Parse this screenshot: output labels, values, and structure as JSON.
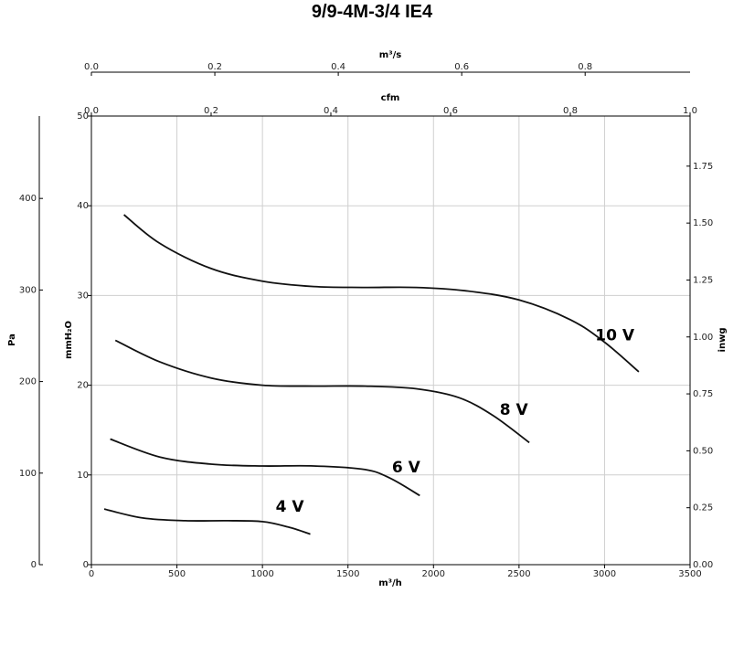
{
  "chart_data": {
    "type": "line",
    "title": "9/9-4M-3/4 IE4",
    "axes": {
      "bottom": {
        "label": "m³/h",
        "range": [
          0,
          3500
        ],
        "ticks": [
          "0",
          "500",
          "1000",
          "1500",
          "2000",
          "2500",
          "3000",
          "3500"
        ]
      },
      "top_inner": {
        "label": "cfm",
        "range": [
          0,
          1.0
        ],
        "ticks": [
          "0.0",
          "0.2",
          "0.4",
          "0.6",
          "0.8",
          "1.0"
        ]
      },
      "top_outer": {
        "label": "m³/s",
        "range": [
          0,
          0.97
        ],
        "ticks": [
          "0.0",
          "0.2",
          "0.4",
          "0.6",
          "0.8"
        ]
      },
      "left_inner": {
        "label": "mmH₂O",
        "range": [
          0,
          50
        ],
        "ticks": [
          "0",
          "10",
          "20",
          "30",
          "40",
          "50"
        ]
      },
      "left_outer": {
        "label": "Pa",
        "range": [
          0,
          490
        ],
        "ticks": [
          "0",
          "100",
          "200",
          "300",
          "400"
        ]
      },
      "right": {
        "label": "inwg",
        "range": [
          0,
          1.97
        ],
        "ticks": [
          "0.00",
          "0.25",
          "0.50",
          "0.75",
          "1.00",
          "1.25",
          "1.50",
          "1.75"
        ]
      }
    },
    "grid": true,
    "series": [
      {
        "name": "10 V",
        "label_at": [
          3060,
          25.0
        ],
        "x": [
          190,
          400,
          700,
          1000,
          1300,
          1600,
          1900,
          2200,
          2500,
          2800,
          3000,
          3200
        ],
        "y": [
          39,
          35.8,
          33.0,
          31.6,
          31.0,
          30.9,
          30.9,
          30.5,
          29.5,
          27.3,
          24.8,
          21.5
        ]
      },
      {
        "name": "8 V",
        "label_at": [
          2470,
          16.7
        ],
        "x": [
          140,
          400,
          700,
          1000,
          1300,
          1600,
          1900,
          2150,
          2350,
          2560
        ],
        "y": [
          25.0,
          22.6,
          20.8,
          20.0,
          19.9,
          19.9,
          19.6,
          18.6,
          16.6,
          13.6
        ]
      },
      {
        "name": "6 V",
        "label_at": [
          1840,
          10.3
        ],
        "x": [
          110,
          400,
          700,
          1000,
          1300,
          1600,
          1750,
          1920
        ],
        "y": [
          14.0,
          12.0,
          11.2,
          11.0,
          11.0,
          10.6,
          9.6,
          7.7
        ]
      },
      {
        "name": "4 V",
        "label_at": [
          1160,
          5.9
        ],
        "x": [
          75,
          300,
          550,
          800,
          1000,
          1150,
          1280
        ],
        "y": [
          6.2,
          5.2,
          4.9,
          4.9,
          4.8,
          4.2,
          3.4
        ]
      }
    ]
  }
}
